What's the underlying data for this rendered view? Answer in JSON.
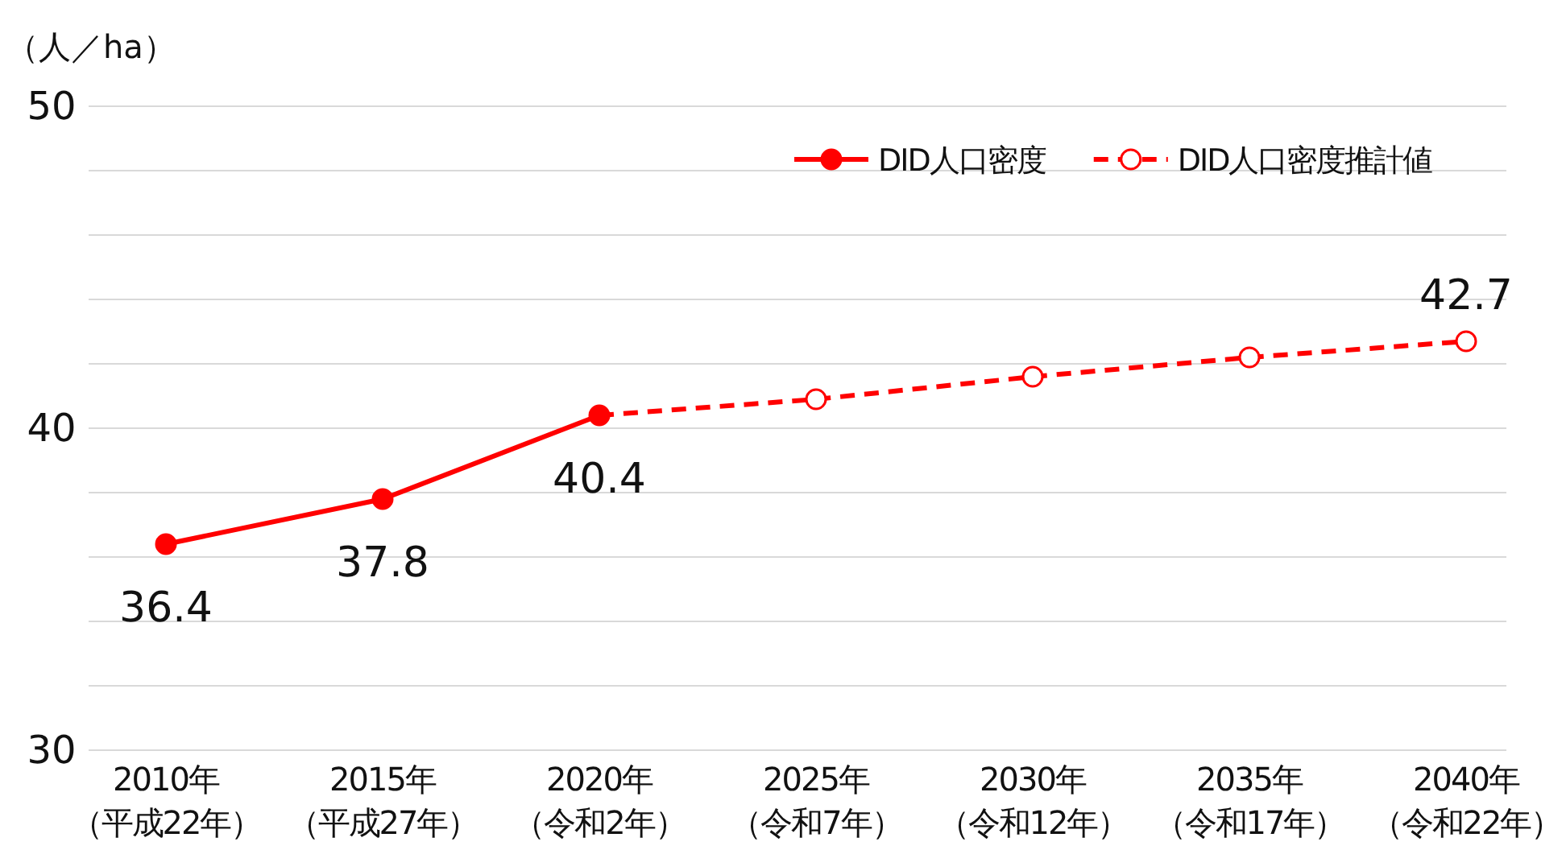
{
  "chart_data": {
    "type": "line",
    "ylabel": "（人／ha）",
    "categories": [
      "2010年（平成22年）",
      "2015年（平成27年）",
      "2020年（令和2年）",
      "2025年（令和7年）",
      "2030年（令和12年）",
      "2035年（令和17年）",
      "2040年（令和22年）"
    ],
    "series": [
      {
        "name": "DID人口密度",
        "color": "#ff0000",
        "marker": "circle",
        "line_style": "solid",
        "values": [
          36.4,
          37.8,
          40.4,
          null,
          null,
          null,
          null
        ],
        "value_labels": [
          "36.4",
          "37.8",
          "40.4",
          null,
          null,
          null,
          null
        ]
      },
      {
        "name": "DID人口密度推計値",
        "color": "#ff0000",
        "marker": "circle",
        "line_style": "dashed",
        "values": [
          null,
          null,
          40.4,
          40.9,
          41.6,
          42.2,
          42.7
        ],
        "value_labels": [
          null,
          null,
          null,
          null,
          null,
          null,
          "42.7"
        ]
      }
    ],
    "ylim": [
      30,
      50
    ],
    "yticks": [
      30,
      {
        "value": 32,
        "label": null
      },
      {
        "value": 34,
        "label": null
      },
      {
        "value": 36,
        "label": null
      },
      {
        "value": 38,
        "label": null
      },
      40,
      {
        "value": 42,
        "label": null
      },
      {
        "value": 44,
        "label": null
      },
      {
        "value": 46,
        "label": null
      },
      {
        "value": 48,
        "label": null
      },
      50
    ],
    "grid": "y",
    "legend": "top right"
  }
}
